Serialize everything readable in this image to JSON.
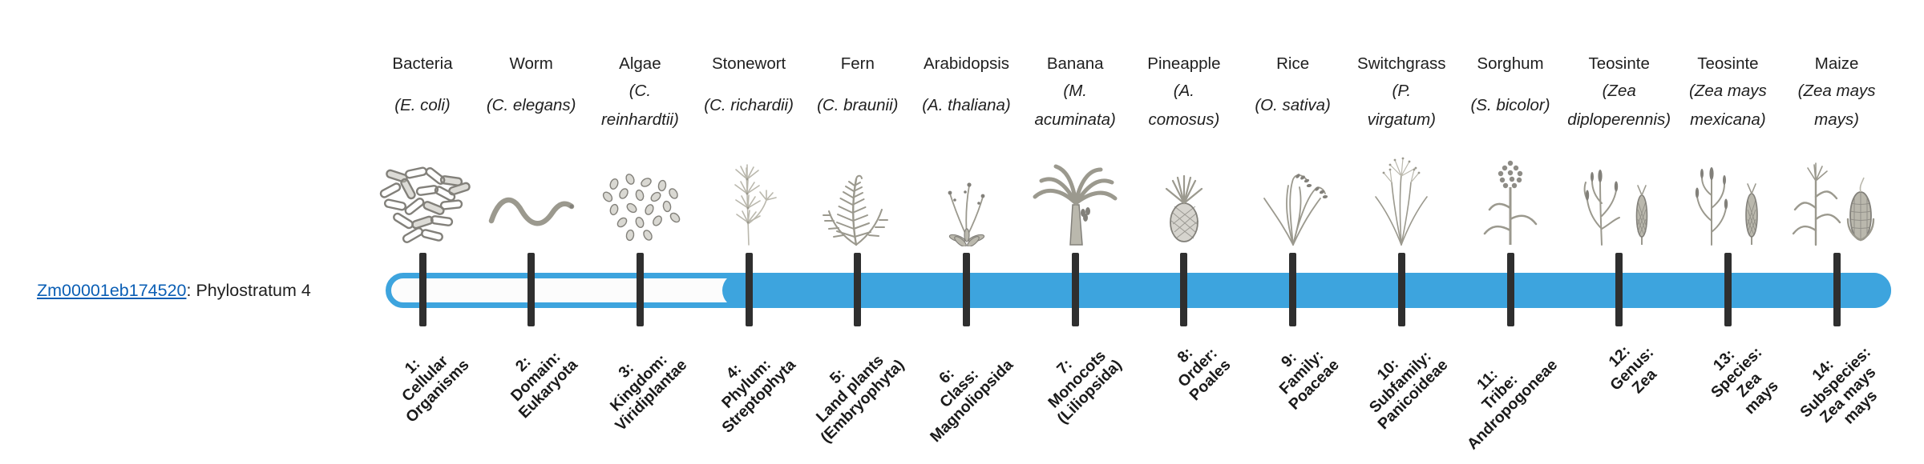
{
  "gene": {
    "id": "Zm00001eb174520",
    "suffix": ": Phylostratum 4",
    "phylostratum": 4
  },
  "bar": {
    "filled_from_stratum": 4,
    "total_strata": 14
  },
  "colors": {
    "bar_blue": "#3da4de",
    "track_fill": "#fcfcfc",
    "tick": "#2f2f2f",
    "link": "#0b5fb5",
    "text": "#1f1f1f",
    "art_main": "#9b998e",
    "art_dark": "#82807a",
    "art_light": "#bab8ad"
  },
  "strata": [
    {
      "num": 1,
      "common_name": "Bacteria",
      "scientific_lines": [
        "(E. coli)"
      ],
      "level_lines": [
        "1:",
        "Cellular",
        "Organisms"
      ],
      "icon": "bacteria"
    },
    {
      "num": 2,
      "common_name": "Worm",
      "scientific_lines": [
        "(C. elegans)"
      ],
      "level_lines": [
        "2:",
        "Domain:",
        "Eukaryota"
      ],
      "icon": "worm"
    },
    {
      "num": 3,
      "common_name": "Algae",
      "scientific_lines": [
        "(C.",
        "reinhardtii)"
      ],
      "level_lines": [
        "3:",
        "Kingdom:",
        "Viridiplantae"
      ],
      "icon": "algae"
    },
    {
      "num": 4,
      "common_name": "Stonewort",
      "scientific_lines": [
        "(C. richardii)"
      ],
      "level_lines": [
        "4:",
        "Phylum:",
        "Streptophyta"
      ],
      "icon": "stonewort"
    },
    {
      "num": 5,
      "common_name": "Fern",
      "scientific_lines": [
        "(C. braunii)"
      ],
      "level_lines": [
        "5:",
        "Land plants",
        "(Embryophyta)"
      ],
      "icon": "fern"
    },
    {
      "num": 6,
      "common_name": "Arabidopsis",
      "scientific_lines": [
        "(A. thaliana)"
      ],
      "level_lines": [
        "6:",
        "Class:",
        "Magnoliopsida"
      ],
      "icon": "arabidopsis"
    },
    {
      "num": 7,
      "common_name": "Banana",
      "scientific_lines": [
        "(M.",
        "acuminata)"
      ],
      "level_lines": [
        "7:",
        "Monocots",
        "(Liliopsida)"
      ],
      "icon": "banana"
    },
    {
      "num": 8,
      "common_name": "Pineapple",
      "scientific_lines": [
        "(A.",
        "comosus)"
      ],
      "level_lines": [
        "8:",
        "Order:",
        "Poales"
      ],
      "icon": "pineapple"
    },
    {
      "num": 9,
      "common_name": "Rice",
      "scientific_lines": [
        "(O. sativa)"
      ],
      "level_lines": [
        "9:",
        "Family:",
        "Poaceae"
      ],
      "icon": "rice"
    },
    {
      "num": 10,
      "common_name": "Switchgrass",
      "scientific_lines": [
        "(P.",
        "virgatum)"
      ],
      "level_lines": [
        "10:",
        "Subfamily:",
        "Panicoideae"
      ],
      "icon": "switchgrass"
    },
    {
      "num": 11,
      "common_name": "Sorghum",
      "scientific_lines": [
        "(S. bicolor)"
      ],
      "level_lines": [
        "11:",
        "Tribe:",
        "Andropogoneae"
      ],
      "icon": "sorghum"
    },
    {
      "num": 12,
      "common_name": "Teosinte",
      "scientific_lines": [
        "(Zea",
        "diploperennis)"
      ],
      "level_lines": [
        "12:",
        "Genus:",
        "Zea"
      ],
      "icon": "teosinte-a"
    },
    {
      "num": 13,
      "common_name": "Teosinte",
      "scientific_lines": [
        "(Zea mays",
        "mexicana)"
      ],
      "level_lines": [
        "13:",
        "Species:",
        "Zea",
        "mays"
      ],
      "icon": "teosinte-b"
    },
    {
      "num": 14,
      "common_name": "Maize",
      "scientific_lines": [
        "(Zea mays",
        "mays)"
      ],
      "level_lines": [
        "14:",
        "Subspecies:",
        "Zea mays",
        "mays"
      ],
      "icon": "maize"
    }
  ]
}
